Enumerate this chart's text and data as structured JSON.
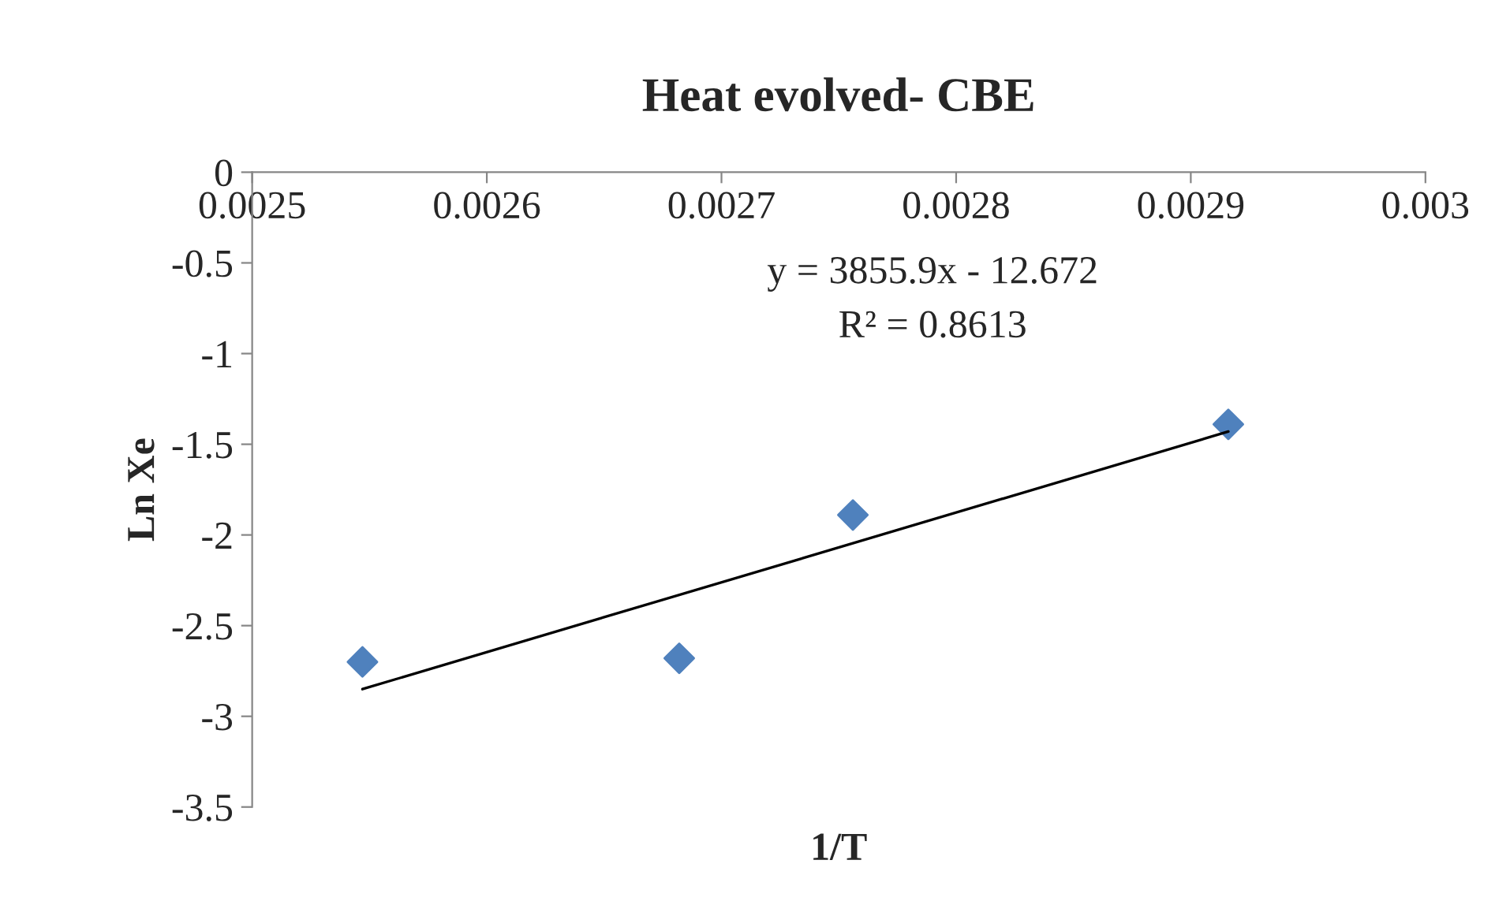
{
  "chart_data": {
    "type": "scatter",
    "title": "Heat evolved- CBE",
    "xlabel": "1/T",
    "ylabel": "Ln Xe",
    "series": [
      {
        "color": "#4f81bd",
        "marker": "diamond",
        "x": [
          0.002547,
          0.002682,
          0.002756,
          0.002916
        ],
        "values": [
          -2.7,
          -2.68,
          -1.89,
          -1.39
        ]
      },
      {
        "type": "line",
        "color": "#000000",
        "marker": "none",
        "line_style": "solid",
        "x": [
          0.002547,
          0.002916
        ],
        "values": [
          -2.85,
          -1.43
        ]
      }
    ],
    "annotations": [
      "y = 3855.9x - 12.672",
      "R² = 0.8613"
    ],
    "xlim": [
      0.0025,
      0.003
    ],
    "xticks": [
      0.0025,
      0.0026,
      0.0027,
      0.0028,
      0.0029,
      0.003
    ],
    "ylim": [
      -3.5,
      0
    ],
    "yticks": [
      0,
      -0.5,
      -1,
      -1.5,
      -2,
      -2.5,
      -3,
      -3.5
    ],
    "grid": false,
    "legend": false
  }
}
